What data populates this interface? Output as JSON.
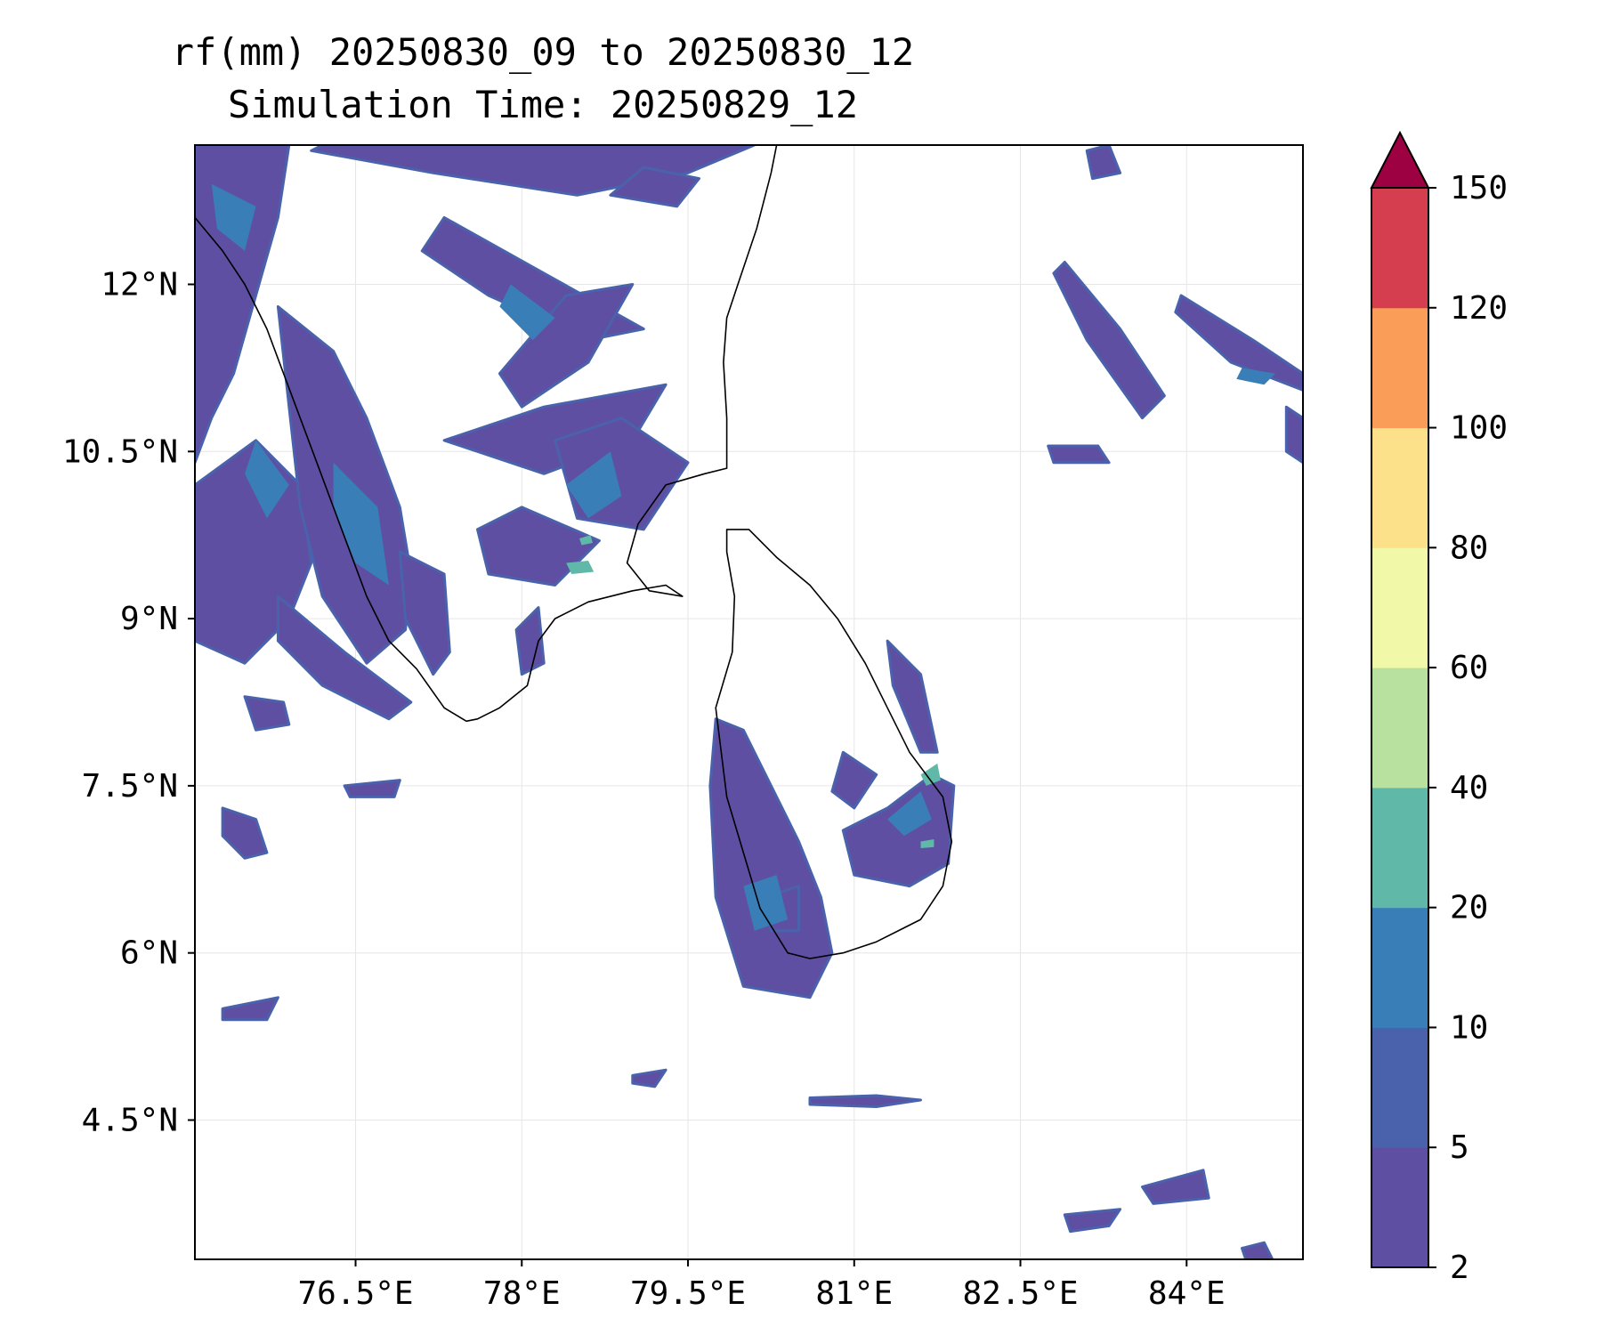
{
  "title": {
    "line1": "rf(mm) 20250830_09 to 20250830_12",
    "line2": "Simulation Time: 20250829_12"
  },
  "map": {
    "lon_range": [
      75.05,
      85.05
    ],
    "lat_range": [
      3.25,
      13.25
    ],
    "x_ticks": [
      {
        "value": 76.5,
        "label": "76.5°E"
      },
      {
        "value": 78.0,
        "label": "78°E"
      },
      {
        "value": 79.5,
        "label": "79.5°E"
      },
      {
        "value": 81.0,
        "label": "81°E"
      },
      {
        "value": 82.5,
        "label": "82.5°E"
      },
      {
        "value": 84.0,
        "label": "84°E"
      }
    ],
    "y_ticks": [
      {
        "value": 12.0,
        "label": "12°N"
      },
      {
        "value": 10.5,
        "label": "10.5°N"
      },
      {
        "value": 9.0,
        "label": "9°N"
      },
      {
        "value": 7.5,
        "label": "7.5°N"
      },
      {
        "value": 6.0,
        "label": "6°N"
      },
      {
        "value": 4.5,
        "label": "4.5°N"
      }
    ],
    "gridlines": true,
    "coastline_color": "#000000",
    "coastlines": [
      [
        [
          75.05,
          12.6
        ],
        [
          75.3,
          12.3
        ],
        [
          75.5,
          12.0
        ],
        [
          75.7,
          11.6
        ],
        [
          75.85,
          11.2
        ],
        [
          76.0,
          10.8
        ],
        [
          76.15,
          10.4
        ],
        [
          76.3,
          10.0
        ],
        [
          76.45,
          9.6
        ],
        [
          76.6,
          9.2
        ],
        [
          76.8,
          8.8
        ],
        [
          77.05,
          8.55
        ],
        [
          77.3,
          8.2
        ],
        [
          77.5,
          8.08
        ],
        [
          77.6,
          8.1
        ],
        [
          77.8,
          8.2
        ],
        [
          78.05,
          8.4
        ],
        [
          78.15,
          8.8
        ],
        [
          78.3,
          9.0
        ],
        [
          78.6,
          9.15
        ],
        [
          79.0,
          9.25
        ],
        [
          79.3,
          9.3
        ],
        [
          79.45,
          9.2
        ],
        [
          79.15,
          9.25
        ],
        [
          78.95,
          9.5
        ],
        [
          79.05,
          9.85
        ],
        [
          79.3,
          10.2
        ],
        [
          79.65,
          10.3
        ],
        [
          79.85,
          10.35
        ],
        [
          79.85,
          10.8
        ],
        [
          79.82,
          11.3
        ],
        [
          79.85,
          11.7
        ],
        [
          79.95,
          12.0
        ],
        [
          80.12,
          12.5
        ],
        [
          80.25,
          13.0
        ],
        [
          80.3,
          13.25
        ]
      ]
    ],
    "islands": [
      [
        [
          79.85,
          9.8
        ],
        [
          80.05,
          9.8
        ],
        [
          80.3,
          9.55
        ],
        [
          80.6,
          9.3
        ],
        [
          80.85,
          9.0
        ],
        [
          81.1,
          8.6
        ],
        [
          81.3,
          8.2
        ],
        [
          81.5,
          7.8
        ],
        [
          81.8,
          7.4
        ],
        [
          81.88,
          7.0
        ],
        [
          81.8,
          6.6
        ],
        [
          81.6,
          6.3
        ],
        [
          81.2,
          6.1
        ],
        [
          80.9,
          6.0
        ],
        [
          80.6,
          5.95
        ],
        [
          80.4,
          6.0
        ],
        [
          80.15,
          6.4
        ],
        [
          80.0,
          6.9
        ],
        [
          79.85,
          7.4
        ],
        [
          79.8,
          7.8
        ],
        [
          79.75,
          8.2
        ],
        [
          79.9,
          8.7
        ],
        [
          79.92,
          9.2
        ],
        [
          79.85,
          9.6
        ]
      ]
    ],
    "rain_patches": [
      [
        [
          75.05,
          13.25
        ],
        [
          75.9,
          13.25
        ],
        [
          75.8,
          12.6
        ],
        [
          75.6,
          11.9
        ],
        [
          75.4,
          11.2
        ],
        [
          75.2,
          10.8
        ],
        [
          75.05,
          10.4
        ]
      ],
      [
        [
          75.05,
          10.2
        ],
        [
          75.6,
          10.6
        ],
        [
          76.0,
          10.2
        ],
        [
          76.1,
          9.5
        ],
        [
          75.9,
          9.0
        ],
        [
          75.5,
          8.6
        ],
        [
          75.05,
          8.8
        ]
      ],
      [
        [
          75.8,
          11.8
        ],
        [
          76.3,
          11.4
        ],
        [
          76.6,
          10.8
        ],
        [
          76.9,
          10.0
        ],
        [
          77.0,
          9.4
        ],
        [
          76.95,
          8.9
        ],
        [
          76.6,
          8.6
        ],
        [
          76.2,
          9.2
        ],
        [
          76.0,
          10.0
        ],
        [
          75.9,
          10.9
        ]
      ],
      [
        [
          76.9,
          9.6
        ],
        [
          77.3,
          9.4
        ],
        [
          77.35,
          8.7
        ],
        [
          77.2,
          8.5
        ],
        [
          76.95,
          9.0
        ]
      ],
      [
        [
          75.8,
          9.2
        ],
        [
          76.4,
          8.7
        ],
        [
          77.0,
          8.25
        ],
        [
          76.8,
          8.1
        ],
        [
          76.2,
          8.4
        ],
        [
          75.8,
          8.8
        ]
      ],
      [
        [
          76.1,
          13.2
        ],
        [
          77.2,
          13.0
        ],
        [
          78.5,
          12.8
        ],
        [
          79.5,
          13.0
        ],
        [
          80.1,
          13.25
        ],
        [
          76.2,
          13.25
        ]
      ],
      [
        [
          77.3,
          12.6
        ],
        [
          78.2,
          12.1
        ],
        [
          79.1,
          11.6
        ],
        [
          78.6,
          11.5
        ],
        [
          77.7,
          11.9
        ],
        [
          77.1,
          12.3
        ]
      ],
      [
        [
          77.8,
          11.2
        ],
        [
          78.4,
          11.9
        ],
        [
          79.0,
          12.0
        ],
        [
          78.6,
          11.3
        ],
        [
          78.0,
          10.9
        ]
      ],
      [
        [
          77.3,
          10.6
        ],
        [
          78.2,
          10.9
        ],
        [
          79.3,
          11.1
        ],
        [
          79.0,
          10.6
        ],
        [
          78.2,
          10.3
        ]
      ],
      [
        [
          78.3,
          10.6
        ],
        [
          78.9,
          10.8
        ],
        [
          79.5,
          10.4
        ],
        [
          79.1,
          9.8
        ],
        [
          78.5,
          9.9
        ]
      ],
      [
        [
          77.6,
          9.8
        ],
        [
          78.0,
          10.0
        ],
        [
          78.7,
          9.7
        ],
        [
          78.3,
          9.3
        ],
        [
          77.7,
          9.4
        ]
      ],
      [
        [
          77.95,
          8.9
        ],
        [
          78.15,
          9.1
        ],
        [
          78.2,
          8.6
        ],
        [
          78.0,
          8.5
        ]
      ],
      [
        [
          79.75,
          8.1
        ],
        [
          80.0,
          8.0
        ],
        [
          80.5,
          7.0
        ],
        [
          80.7,
          6.5
        ],
        [
          80.8,
          6.0
        ],
        [
          80.6,
          5.6
        ],
        [
          80.0,
          5.7
        ],
        [
          79.75,
          6.5
        ],
        [
          79.7,
          7.5
        ]
      ],
      [
        [
          80.9,
          7.1
        ],
        [
          81.3,
          7.3
        ],
        [
          81.7,
          7.6
        ],
        [
          81.9,
          7.5
        ],
        [
          81.85,
          6.8
        ],
        [
          81.5,
          6.6
        ],
        [
          81.0,
          6.7
        ]
      ],
      [
        [
          81.3,
          8.8
        ],
        [
          81.6,
          8.5
        ],
        [
          81.75,
          7.8
        ],
        [
          81.6,
          7.8
        ],
        [
          81.35,
          8.4
        ]
      ],
      [
        [
          80.9,
          7.8
        ],
        [
          81.2,
          7.6
        ],
        [
          81.0,
          7.3
        ],
        [
          80.8,
          7.45
        ]
      ],
      [
        [
          82.9,
          12.2
        ],
        [
          83.4,
          11.6
        ],
        [
          83.8,
          11.0
        ],
        [
          83.6,
          10.8
        ],
        [
          83.1,
          11.5
        ],
        [
          82.8,
          12.1
        ]
      ],
      [
        [
          83.95,
          11.9
        ],
        [
          84.6,
          11.5
        ],
        [
          85.05,
          11.2
        ],
        [
          85.05,
          11.05
        ],
        [
          84.4,
          11.3
        ],
        [
          83.9,
          11.75
        ]
      ],
      [
        [
          82.75,
          10.55
        ],
        [
          83.2,
          10.55
        ],
        [
          83.3,
          10.4
        ],
        [
          82.8,
          10.4
        ]
      ],
      [
        [
          84.9,
          10.9
        ],
        [
          85.05,
          10.8
        ],
        [
          85.05,
          10.4
        ],
        [
          84.9,
          10.5
        ]
      ],
      [
        [
          83.6,
          3.9
        ],
        [
          84.15,
          4.05
        ],
        [
          84.2,
          3.8
        ],
        [
          83.7,
          3.75
        ]
      ],
      [
        [
          82.9,
          3.65
        ],
        [
          83.4,
          3.7
        ],
        [
          83.3,
          3.55
        ],
        [
          82.95,
          3.5
        ]
      ],
      [
        [
          80.6,
          4.7
        ],
        [
          81.2,
          4.72
        ],
        [
          81.6,
          4.68
        ],
        [
          81.2,
          4.62
        ],
        [
          80.6,
          4.64
        ]
      ],
      [
        [
          79.0,
          4.9
        ],
        [
          79.3,
          4.95
        ],
        [
          79.2,
          4.8
        ],
        [
          79.0,
          4.83
        ]
      ],
      [
        [
          75.3,
          7.3
        ],
        [
          75.6,
          7.2
        ],
        [
          75.7,
          6.9
        ],
        [
          75.5,
          6.85
        ],
        [
          75.3,
          7.05
        ]
      ],
      [
        [
          75.5,
          8.3
        ],
        [
          75.85,
          8.25
        ],
        [
          75.9,
          8.05
        ],
        [
          75.6,
          8.0
        ]
      ],
      [
        [
          78.8,
          12.8
        ],
        [
          79.4,
          12.7
        ],
        [
          79.6,
          12.95
        ],
        [
          79.1,
          13.05
        ]
      ],
      [
        [
          83.1,
          13.2
        ],
        [
          83.3,
          13.25
        ],
        [
          83.4,
          13.0
        ],
        [
          83.15,
          12.95
        ]
      ],
      [
        [
          75.3,
          5.5
        ],
        [
          75.8,
          5.6
        ],
        [
          75.7,
          5.4
        ],
        [
          75.3,
          5.4
        ]
      ],
      [
        [
          84.5,
          3.35
        ],
        [
          84.7,
          3.4
        ],
        [
          84.8,
          3.2
        ],
        [
          84.55,
          3.2
        ]
      ],
      [
        [
          80.2,
          6.5
        ],
        [
          80.5,
          6.6
        ],
        [
          80.5,
          6.2
        ],
        [
          80.25,
          6.2
        ]
      ],
      [
        [
          76.4,
          7.5
        ],
        [
          76.9,
          7.55
        ],
        [
          76.85,
          7.4
        ],
        [
          76.45,
          7.4
        ]
      ]
    ],
    "rain_mid_patches": [
      [
        [
          75.2,
          12.9
        ],
        [
          75.6,
          12.7
        ],
        [
          75.5,
          12.3
        ],
        [
          75.25,
          12.5
        ]
      ],
      [
        [
          76.3,
          10.4
        ],
        [
          76.7,
          10.0
        ],
        [
          76.8,
          9.3
        ],
        [
          76.5,
          9.5
        ],
        [
          76.3,
          10.0
        ]
      ],
      [
        [
          75.6,
          10.6
        ],
        [
          75.9,
          10.2
        ],
        [
          75.7,
          9.9
        ],
        [
          75.5,
          10.3
        ]
      ],
      [
        [
          77.9,
          12.0
        ],
        [
          78.3,
          11.7
        ],
        [
          78.1,
          11.5
        ],
        [
          77.8,
          11.8
        ]
      ],
      [
        [
          78.4,
          10.2
        ],
        [
          78.8,
          10.5
        ],
        [
          78.9,
          10.1
        ],
        [
          78.6,
          9.9
        ]
      ],
      [
        [
          80.0,
          6.6
        ],
        [
          80.3,
          6.7
        ],
        [
          80.4,
          6.3
        ],
        [
          80.1,
          6.2
        ]
      ],
      [
        [
          81.3,
          7.2
        ],
        [
          81.6,
          7.45
        ],
        [
          81.7,
          7.2
        ],
        [
          81.45,
          7.05
        ]
      ],
      [
        [
          84.5,
          11.25
        ],
        [
          84.8,
          11.2
        ],
        [
          84.7,
          11.1
        ],
        [
          84.45,
          11.15
        ]
      ]
    ],
    "rain_high_patches": [
      [
        [
          78.4,
          9.5
        ],
        [
          78.6,
          9.52
        ],
        [
          78.65,
          9.42
        ],
        [
          78.45,
          9.4
        ]
      ],
      [
        [
          78.52,
          9.72
        ],
        [
          78.62,
          9.75
        ],
        [
          78.64,
          9.68
        ],
        [
          78.54,
          9.66
        ]
      ],
      [
        [
          81.6,
          7.6
        ],
        [
          81.75,
          7.7
        ],
        [
          81.78,
          7.55
        ],
        [
          81.65,
          7.5
        ]
      ],
      [
        [
          81.6,
          7.0
        ],
        [
          81.72,
          7.02
        ],
        [
          81.72,
          6.95
        ],
        [
          81.6,
          6.94
        ]
      ]
    ]
  },
  "colorbar": {
    "levels": [
      2,
      5,
      10,
      20,
      40,
      60,
      80,
      100,
      120,
      150
    ],
    "level_labels": [
      "2",
      "5",
      "10",
      "20",
      "40",
      "60",
      "80",
      "100",
      "120",
      "150"
    ],
    "colors": [
      "#5e4fa2",
      "#4a62ac",
      "#3a7eb8",
      "#5fb8a8",
      "#b8e09e",
      "#f1f8a8",
      "#fce08a",
      "#f99d59",
      "#d53e4f"
    ],
    "extend_color": "#9e0142",
    "extend": "max"
  }
}
